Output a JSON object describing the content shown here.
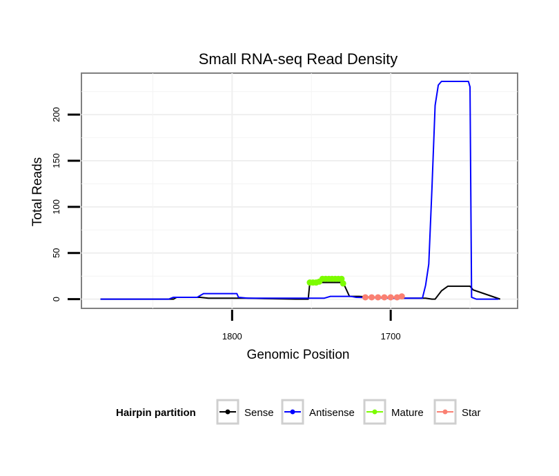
{
  "chart_data": {
    "type": "line",
    "title": "Small RNA-seq Read Density",
    "xlabel": "Genomic Position",
    "ylabel": "Total Reads",
    "x_reversed": true,
    "xlim": [
      1895,
      1620
    ],
    "ylim": [
      -10,
      245
    ],
    "x_ticks": [
      1800,
      1700
    ],
    "y_ticks": [
      0,
      50,
      100,
      150,
      200
    ],
    "grid": true,
    "legend": {
      "title": "Hairpin partition",
      "position": "bottom",
      "entries": [
        {
          "label": "Sense",
          "color": "#000000"
        },
        {
          "label": "Antisense",
          "color": "#0000ff"
        },
        {
          "label": "Mature",
          "color": "#7cfc00"
        },
        {
          "label": "Star",
          "color": "#fa8072"
        }
      ]
    },
    "series": [
      {
        "name": "Sense",
        "color": "#000000",
        "style": "line",
        "x": [
          1883,
          1837,
          1835,
          1820,
          1815,
          1790,
          1760,
          1752,
          1751,
          1730,
          1726,
          1720,
          1700,
          1690,
          1678,
          1674,
          1672,
          1668,
          1664,
          1650,
          1648,
          1631
        ],
        "y": [
          0,
          0,
          2,
          2,
          1,
          1,
          0,
          0,
          18,
          18,
          3,
          3,
          1,
          1,
          1,
          0,
          0,
          9,
          14,
          14,
          10,
          0
        ]
      },
      {
        "name": "Antisense",
        "color": "#0000ff",
        "style": "line",
        "x": [
          1883,
          1840,
          1837,
          1822,
          1820,
          1818,
          1815,
          1797,
          1796,
          1790,
          1760,
          1742,
          1740,
          1738,
          1725,
          1722,
          1700,
          1680,
          1678,
          1676,
          1674,
          1672,
          1670,
          1668,
          1651,
          1650,
          1649,
          1646,
          1632
        ],
        "y": [
          0,
          0,
          2,
          2,
          4,
          6,
          6,
          6,
          2,
          1,
          1,
          1,
          2,
          3,
          3,
          2,
          1,
          1,
          15,
          38,
          120,
          210,
          232,
          236,
          236,
          230,
          2,
          0,
          0
        ]
      },
      {
        "name": "Mature",
        "color": "#7cfc00",
        "style": "line+points",
        "x": [
          1751,
          1749,
          1747,
          1745,
          1743,
          1741,
          1739,
          1737,
          1735,
          1733,
          1731,
          1730
        ],
        "y": [
          18,
          18,
          18,
          19,
          22,
          22,
          22,
          22,
          22,
          22,
          22,
          17
        ]
      },
      {
        "name": "Star",
        "color": "#fa8072",
        "style": "line+points",
        "x": [
          1716,
          1712,
          1708,
          1704,
          1700,
          1696,
          1693
        ],
        "y": [
          2,
          2,
          2,
          2,
          2,
          2,
          3
        ]
      }
    ]
  }
}
